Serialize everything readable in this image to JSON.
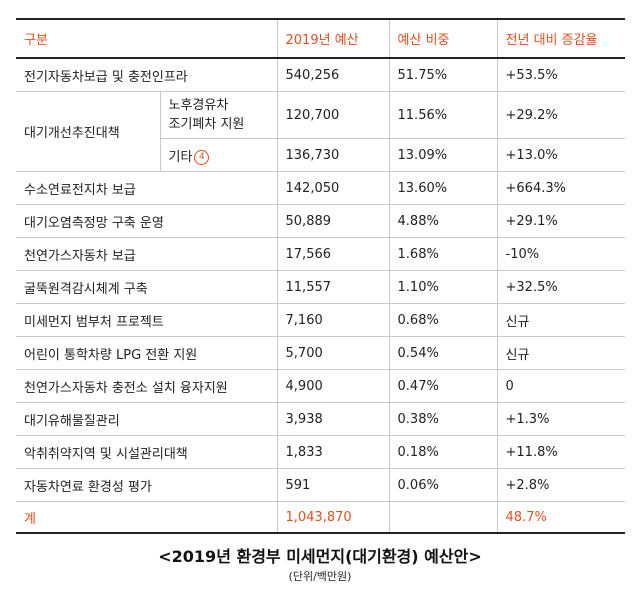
{
  "headers": [
    "구분",
    "2019년 예산",
    "예산 비중",
    "전년 대비 증감율"
  ],
  "row_first": {
    "label": "전기자동차보급 및 충전인프라",
    "budget": "540,256",
    "share": "51.75%",
    "change": "+53.5%"
  },
  "group": {
    "label": "대기개선추진대책",
    "sub": [
      {
        "label_line1": "노후경유차",
        "label_line2": "조기폐차 지원",
        "budget": "120,700",
        "share": "11.56%",
        "change": "+29.2%"
      },
      {
        "label": "기타",
        "note": "4",
        "budget": "136,730",
        "share": "13.09%",
        "change": "+13.0%"
      }
    ]
  },
  "rows": [
    {
      "label": "수소연료전지차 보급",
      "budget": "142,050",
      "share": "13.60%",
      "change": "+664.3%"
    },
    {
      "label": "대기오염측정망 구축 운영",
      "budget": "50,889",
      "share": "4.88%",
      "change": "+29.1%"
    },
    {
      "label": "천연가스자동차 보급",
      "budget": "17,566",
      "share": "1.68%",
      "change": "-10%"
    },
    {
      "label": "굴뚝원격감시체계 구축",
      "budget": "11,557",
      "share": "1.10%",
      "change": "+32.5%"
    },
    {
      "label": "미세먼지 범부처 프로젝트",
      "budget": "7,160",
      "share": "0.68%",
      "change": "신규"
    },
    {
      "label": "어린이 통학차량 LPG 전환 지원",
      "budget": "5,700",
      "share": "0.54%",
      "change": "신규"
    },
    {
      "label": "천연가스자동차 충전소 설치 융자지원",
      "budget": "4,900",
      "share": "0.47%",
      "change": "0"
    },
    {
      "label": "대기유해물질관리",
      "budget": "3,938",
      "share": "0.38%",
      "change": "+1.3%"
    },
    {
      "label": "악취취약지역 및 시설관리대책",
      "budget": "1,833",
      "share": "0.18%",
      "change": "+11.8%"
    },
    {
      "label": "자동차연료 환경성 평가",
      "budget": "591",
      "share": "0.06%",
      "change": "+2.8%"
    }
  ],
  "total": {
    "label": "계",
    "budget": "1,043,870",
    "share": "",
    "change": "48.7%"
  },
  "caption": "<2019년 환경부 미세먼지(대기환경) 예산안>",
  "unit": "(단위/백만원)",
  "accent_color": "#e0501e"
}
